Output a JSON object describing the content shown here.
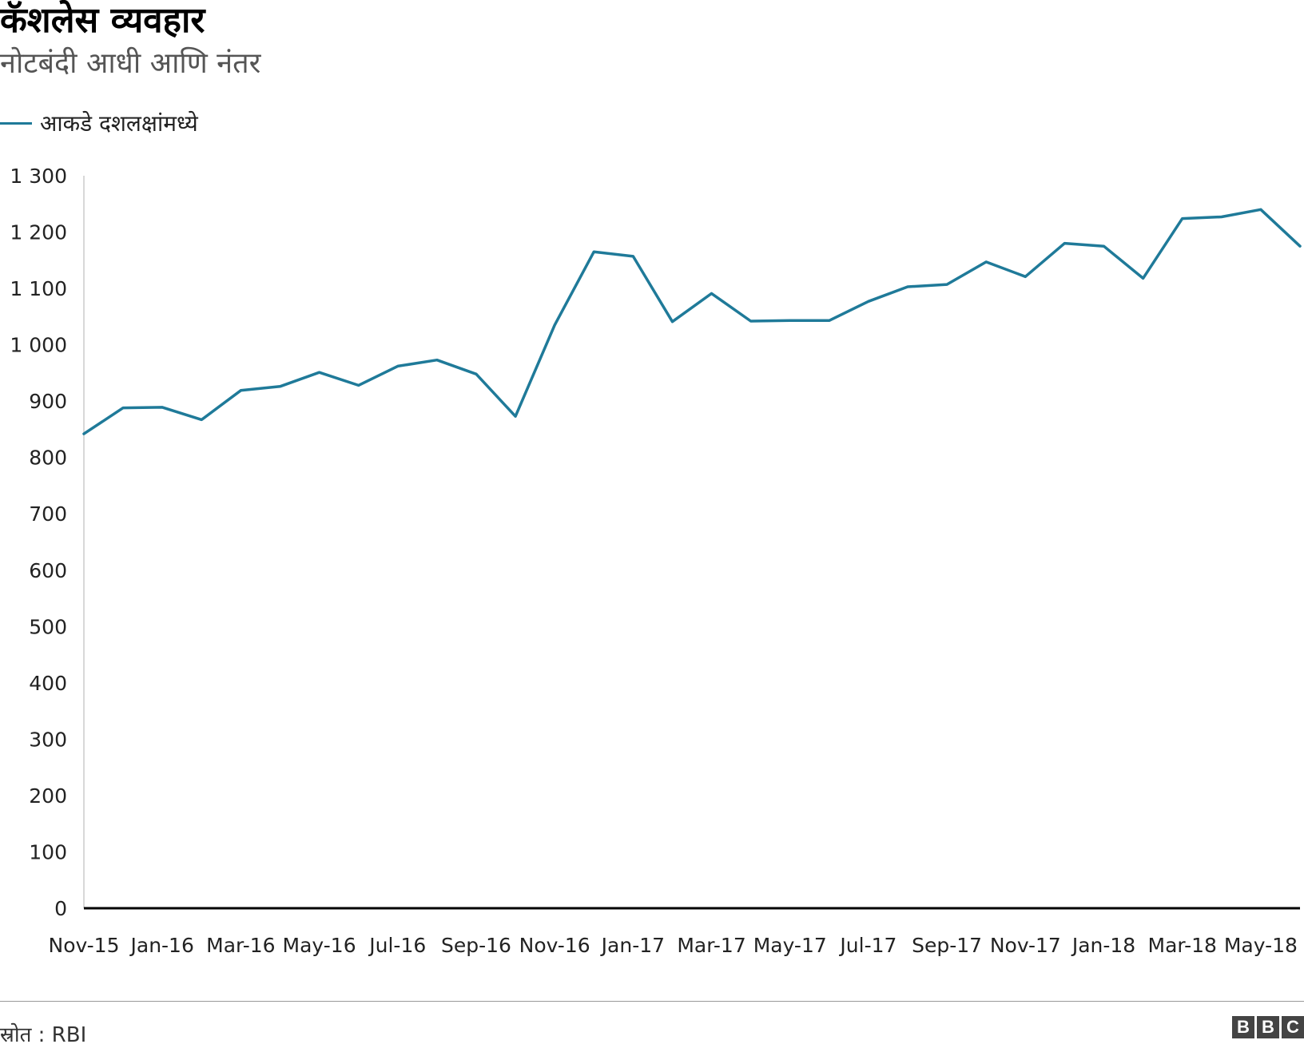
{
  "header": {
    "title": "कॅशलेस व्यवहार",
    "subtitle": "नोटबंदी आधी आणि नंतर"
  },
  "legend": {
    "label": "आकडे दशलक्षांमध्ये",
    "color": "#1f7a99"
  },
  "chart_data": {
    "type": "line",
    "title": "कॅशलेस व्यवहार",
    "subtitle": "नोटबंदी आधी आणि नंतर",
    "xlabel": "",
    "ylabel": "",
    "ylim": [
      0,
      1300
    ],
    "y_ticks": [
      0,
      100,
      200,
      300,
      400,
      500,
      600,
      700,
      800,
      900,
      1000,
      1100,
      1200,
      1300
    ],
    "y_tick_labels": [
      "0",
      "100",
      "200",
      "300",
      "400",
      "500",
      "600",
      "700",
      "800",
      "900",
      "1 000",
      "1 100",
      "1 200",
      "1 300"
    ],
    "x": [
      "Nov-15",
      "Dec-15",
      "Jan-16",
      "Feb-16",
      "Mar-16",
      "Apr-16",
      "May-16",
      "Jun-16",
      "Jul-16",
      "Aug-16",
      "Sep-16",
      "Oct-16",
      "Nov-16",
      "Dec-16",
      "Jan-17",
      "Feb-17",
      "Mar-17",
      "Apr-17",
      "May-17",
      "Jun-17",
      "Jul-17",
      "Aug-17",
      "Sep-17",
      "Oct-17",
      "Nov-17",
      "Dec-17",
      "Jan-18",
      "Feb-18",
      "Mar-18",
      "Apr-18",
      "May-18",
      "Jun-18"
    ],
    "x_tick_labels": [
      "Nov-15",
      "Jan-16",
      "Mar-16",
      "May-16",
      "Jul-16",
      "Sep-16",
      "Nov-16",
      "Jan-17",
      "Mar-17",
      "May-17",
      "Jul-17",
      "Sep-17",
      "Nov-17",
      "Jan-18",
      "Mar-18",
      "May-18"
    ],
    "series": [
      {
        "name": "आकडे दशलक्षांमध्ये",
        "color": "#1f7a99",
        "values": [
          842,
          888,
          889,
          867,
          919,
          926,
          951,
          928,
          962,
          973,
          948,
          873,
          1035,
          1165,
          1157,
          1041,
          1091,
          1042,
          1043,
          1043,
          1077,
          1103,
          1107,
          1147,
          1121,
          1180,
          1175,
          1118,
          1224,
          1227,
          1240,
          1175
        ]
      }
    ],
    "grid": false,
    "legend_position": "top-left"
  },
  "footer": {
    "source": "स्रोत : RBI",
    "logo_letters": [
      "B",
      "B",
      "C"
    ]
  }
}
